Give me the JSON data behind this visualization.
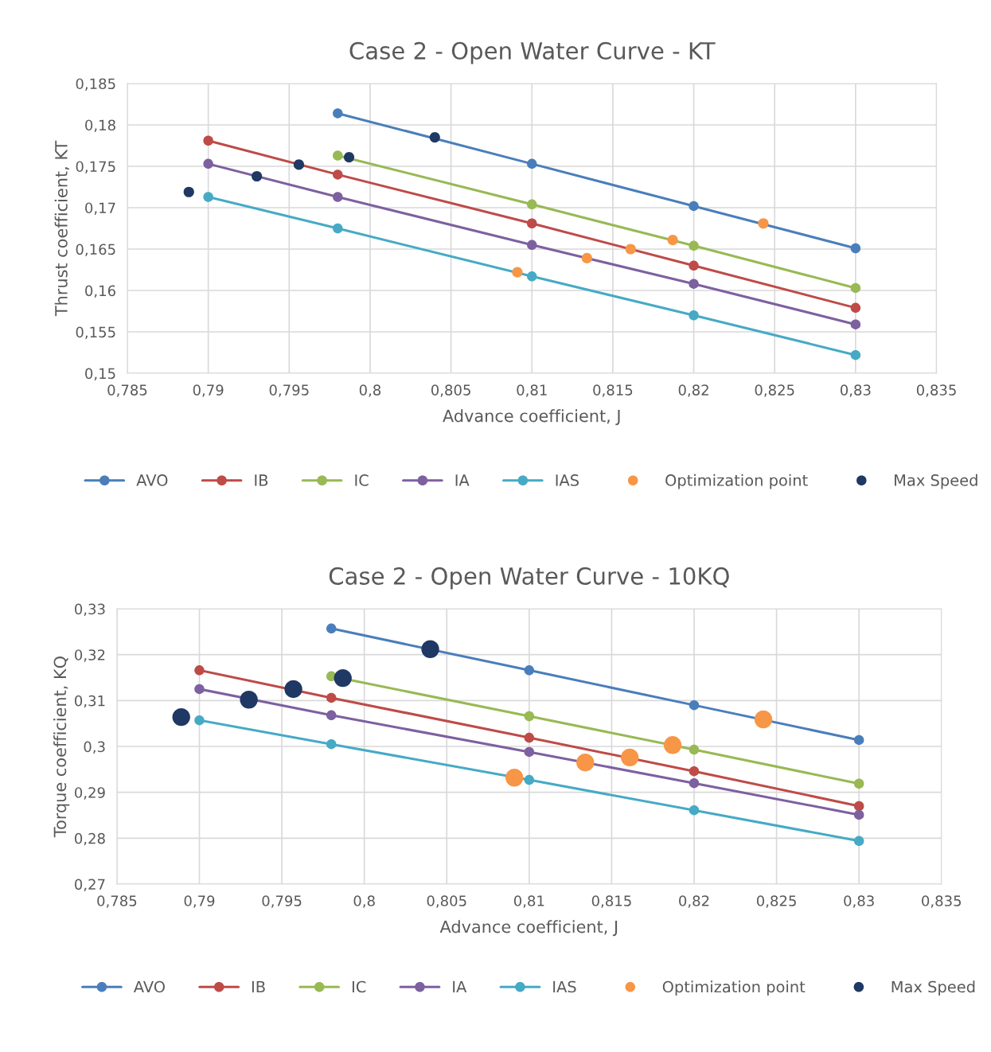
{
  "chart_data": [
    {
      "type": "line",
      "title": "Case 2 - Open Water Curve - KT",
      "xlabel": "Advance coefficient, J",
      "ylabel": "Thrust coefficient, KT",
      "grid": true,
      "legend": "bottom",
      "marker": "circle",
      "line_style": "solid",
      "xlim": [
        0.785,
        0.835
      ],
      "ylim": [
        0.15,
        0.185
      ],
      "xticks": [
        {
          "value": 0.785,
          "label": "0,785"
        },
        {
          "value": 0.79,
          "label": "0,79"
        },
        {
          "value": 0.795,
          "label": "0,795"
        },
        {
          "value": 0.8,
          "label": "0,8"
        },
        {
          "value": 0.805,
          "label": "0,805"
        },
        {
          "value": 0.81,
          "label": "0,81"
        },
        {
          "value": 0.815,
          "label": "0,815"
        },
        {
          "value": 0.82,
          "label": "0,82"
        },
        {
          "value": 0.825,
          "label": "0,825"
        },
        {
          "value": 0.83,
          "label": "0,83"
        },
        {
          "value": 0.835,
          "label": "0,835"
        }
      ],
      "yticks": [
        {
          "value": 0.15,
          "label": "0,15"
        },
        {
          "value": 0.155,
          "label": "0,155"
        },
        {
          "value": 0.16,
          "label": "0,16"
        },
        {
          "value": 0.165,
          "label": "0,165"
        },
        {
          "value": 0.17,
          "label": "0,17"
        },
        {
          "value": 0.175,
          "label": "0,175"
        },
        {
          "value": 0.18,
          "label": "0,18"
        },
        {
          "value": 0.185,
          "label": "0,185"
        }
      ],
      "series": [
        {
          "name": "AVO",
          "color": "#4a7ebb",
          "x": [
            0.798,
            0.81,
            0.82,
            0.83
          ],
          "values": [
            0.1814,
            0.1753,
            0.1702,
            0.1651
          ]
        },
        {
          "name": "IB",
          "color": "#be4b48",
          "x": [
            0.79,
            0.798,
            0.81,
            0.82,
            0.83
          ],
          "values": [
            0.1781,
            0.174,
            0.1681,
            0.163,
            0.1579
          ]
        },
        {
          "name": "IC",
          "color": "#98b954",
          "x": [
            0.798,
            0.81,
            0.82,
            0.83
          ],
          "values": [
            0.1763,
            0.1704,
            0.1654,
            0.1603
          ]
        },
        {
          "name": "IA",
          "color": "#7d60a0",
          "x": [
            0.79,
            0.798,
            0.81,
            0.82,
            0.83
          ],
          "values": [
            0.1753,
            0.1713,
            0.1655,
            0.1608,
            0.1559
          ]
        },
        {
          "name": "IAS",
          "color": "#46aac5",
          "x": [
            0.79,
            0.798,
            0.81,
            0.82,
            0.83
          ],
          "values": [
            0.1713,
            0.1675,
            0.1617,
            0.157,
            0.1522
          ]
        },
        {
          "name": "Optimization point",
          "type": "scatter",
          "color": "#f79646",
          "x": [
            0.8091,
            0.8134,
            0.8161,
            0.8187,
            0.8243
          ],
          "values": [
            0.1622,
            0.1639,
            0.165,
            0.1661,
            0.1681
          ]
        },
        {
          "name": "Max Speed",
          "type": "scatter",
          "color": "#1f3864",
          "x": [
            0.7888,
            0.793,
            0.7956,
            0.7987,
            0.804
          ],
          "values": [
            0.1719,
            0.1738,
            0.1752,
            0.1761,
            0.1785
          ]
        }
      ]
    },
    {
      "type": "line",
      "title": "Case 2 - Open Water Curve - 10KQ",
      "xlabel": "Advance coefficient, J",
      "ylabel": "Torque coefficient, KQ",
      "grid": true,
      "legend": "bottom",
      "marker": "circle",
      "line_style": "solid",
      "xlim": [
        0.785,
        0.835
      ],
      "ylim": [
        0.27,
        0.33
      ],
      "xticks": [
        {
          "value": 0.785,
          "label": "0,785"
        },
        {
          "value": 0.79,
          "label": "0,79"
        },
        {
          "value": 0.795,
          "label": "0,795"
        },
        {
          "value": 0.8,
          "label": "0,8"
        },
        {
          "value": 0.805,
          "label": "0,805"
        },
        {
          "value": 0.81,
          "label": "0,81"
        },
        {
          "value": 0.815,
          "label": "0,815"
        },
        {
          "value": 0.82,
          "label": "0,82"
        },
        {
          "value": 0.825,
          "label": "0,825"
        },
        {
          "value": 0.83,
          "label": "0,83"
        },
        {
          "value": 0.835,
          "label": "0,835"
        }
      ],
      "yticks": [
        {
          "value": 0.27,
          "label": "0,27"
        },
        {
          "value": 0.28,
          "label": "0,28"
        },
        {
          "value": 0.29,
          "label": "0,29"
        },
        {
          "value": 0.3,
          "label": "0,3"
        },
        {
          "value": 0.31,
          "label": "0,31"
        },
        {
          "value": 0.32,
          "label": "0,32"
        },
        {
          "value": 0.33,
          "label": "0,33"
        }
      ],
      "series": [
        {
          "name": "AVO",
          "color": "#4a7ebb",
          "x": [
            0.798,
            0.81,
            0.82,
            0.83
          ],
          "values": [
            0.3257,
            0.3166,
            0.309,
            0.3014
          ]
        },
        {
          "name": "IB",
          "color": "#be4b48",
          "x": [
            0.79,
            0.798,
            0.81,
            0.82,
            0.83
          ],
          "values": [
            0.3166,
            0.3106,
            0.3019,
            0.2946,
            0.287
          ]
        },
        {
          "name": "IC",
          "color": "#98b954",
          "x": [
            0.798,
            0.81,
            0.82,
            0.83
          ],
          "values": [
            0.3153,
            0.3066,
            0.2993,
            0.2919
          ]
        },
        {
          "name": "IA",
          "color": "#7d60a0",
          "x": [
            0.79,
            0.798,
            0.81,
            0.82,
            0.83
          ],
          "values": [
            0.3125,
            0.3068,
            0.2988,
            0.292,
            0.2851
          ]
        },
        {
          "name": "IAS",
          "color": "#46aac5",
          "x": [
            0.79,
            0.798,
            0.81,
            0.82,
            0.83
          ],
          "values": [
            0.3057,
            0.3005,
            0.2927,
            0.2861,
            0.2794
          ]
        },
        {
          "name": "Optimization point",
          "type": "scatter",
          "color": "#f79646",
          "x": [
            0.8091,
            0.8134,
            0.8161,
            0.8187,
            0.8242
          ],
          "values": [
            0.2932,
            0.2965,
            0.2976,
            0.3003,
            0.3059
          ]
        },
        {
          "name": "Max Speed",
          "type": "scatter",
          "color": "#1f3864",
          "x": [
            0.7889,
            0.793,
            0.7957,
            0.7987,
            0.804
          ],
          "values": [
            0.3064,
            0.3102,
            0.3125,
            0.3149,
            0.3212
          ]
        }
      ]
    }
  ]
}
